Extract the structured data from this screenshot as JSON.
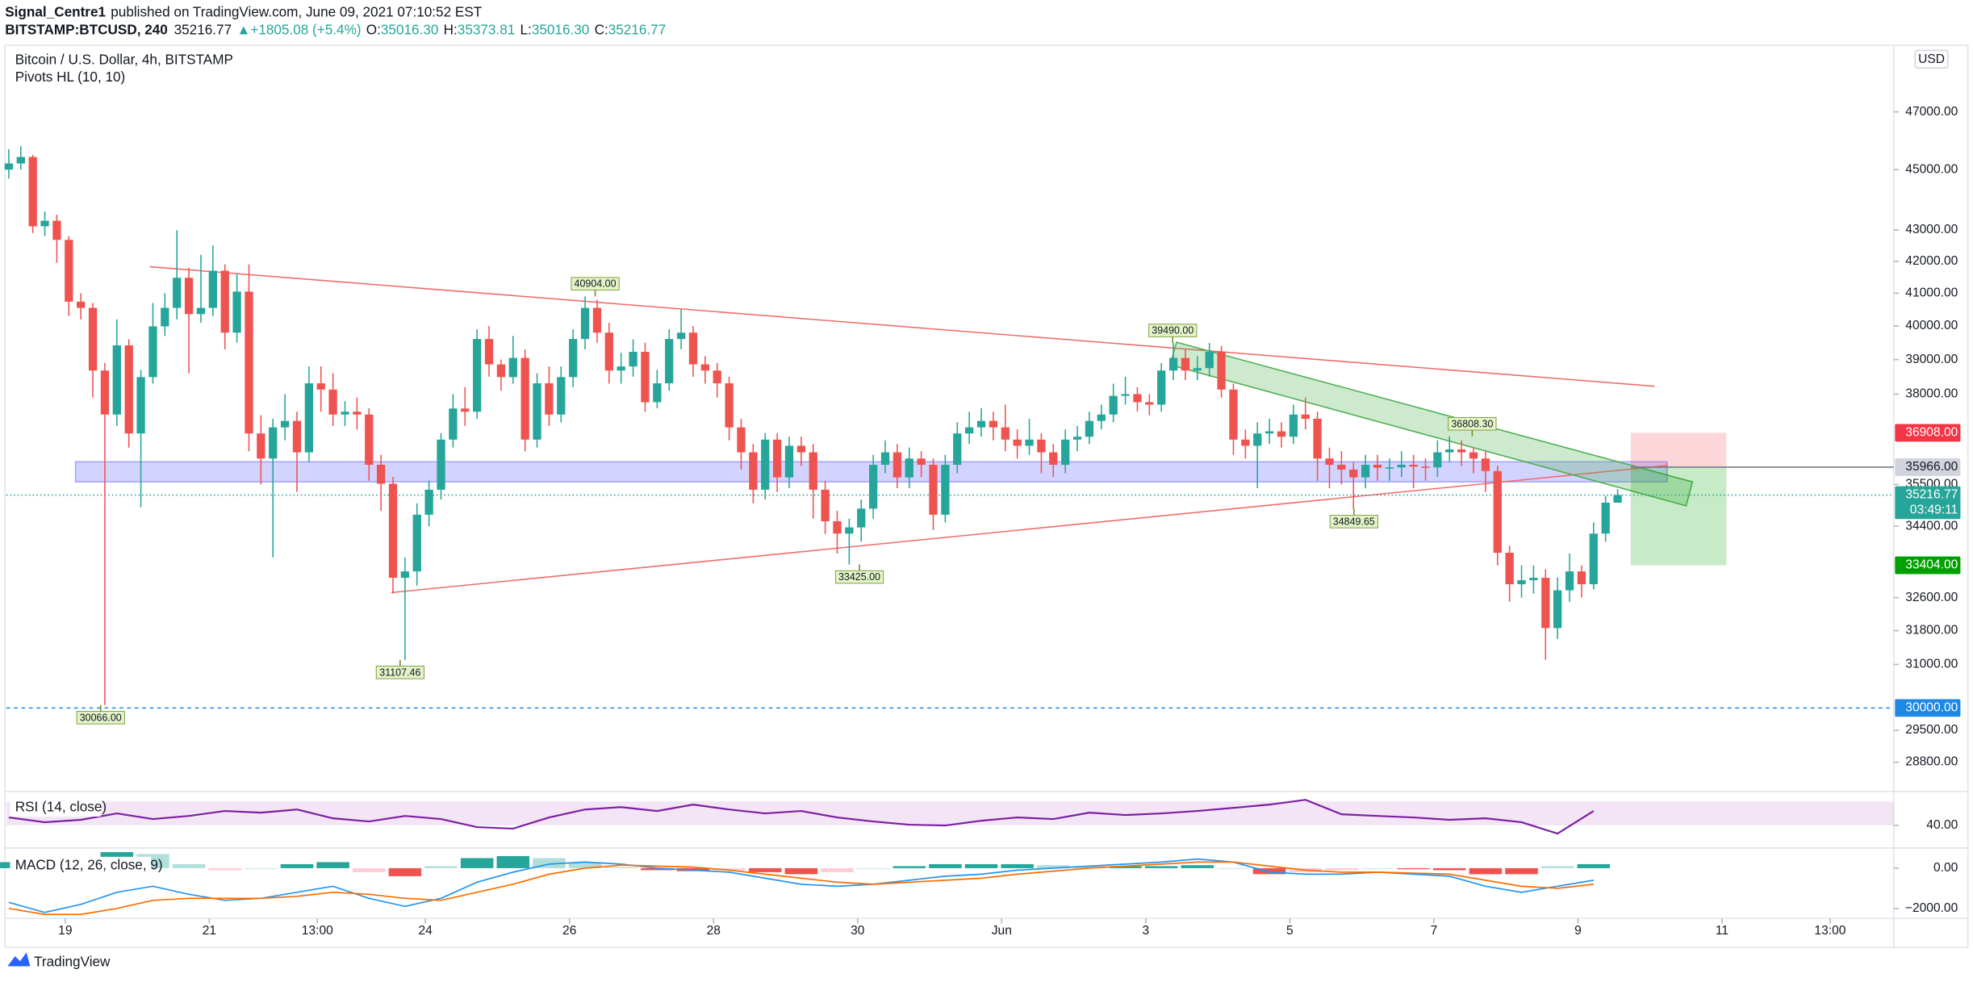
{
  "header": {
    "author": "Signal_Centre1",
    "published": "published on TradingView.com, June 09, 2021 07:10:52 EST",
    "symbol": "BITSTAMP:BTCUSD, 240",
    "last": "35216.77",
    "change": "▲+1805.08 (+5.4%)",
    "ohlc": [
      {
        "key": "O:",
        "value": "35016.30"
      },
      {
        "key": "H:",
        "value": "35373.81"
      },
      {
        "key": "L:",
        "value": "35016.30"
      },
      {
        "key": "C:",
        "value": "35216.77"
      }
    ]
  },
  "footer": {
    "brand": "TradingView"
  },
  "chart_data": [
    {
      "type": "candlestick",
      "title": "Bitcoin / U.S. Dollar, 4h, BITSTAMP",
      "indicator": "Pivots HL (10, 10)",
      "currency": "USD",
      "up_color": "#26a69a",
      "down_color": "#ef5350",
      "countdown": "03:49:11",
      "open": [
        45000,
        45210,
        45430,
        43120,
        43300,
        42680,
        40740,
        40550,
        38680,
        37420,
        39420,
        36890,
        38490,
        39990,
        40550,
        41480,
        40360,
        40550,
        41700,
        39800,
        41050,
        36890,
        36200,
        37060,
        37240,
        36370,
        38310,
        38130,
        37420,
        37500,
        37420,
        36030,
        35520,
        33090,
        33250,
        34700,
        35360,
        36720,
        37590,
        37500,
        39610,
        38860,
        38490,
        39050,
        36720,
        38310,
        37420,
        38490,
        39610,
        40550,
        39800,
        38680,
        38800,
        39230,
        37770,
        38310,
        39610,
        39800,
        38860,
        38680,
        38310,
        37060,
        36370,
        35360,
        36720,
        35690,
        36550,
        36370,
        35360,
        34530,
        34210,
        34370,
        34860,
        36030,
        36370,
        35690,
        36200,
        36030,
        34700,
        36030,
        36890,
        37060,
        37240,
        37060,
        36720,
        36550,
        36720,
        36370,
        36030,
        36720,
        36800,
        37240,
        37420,
        37950,
        38000,
        37770,
        37700,
        38680,
        39050,
        38680,
        38750,
        39230,
        38130,
        36720,
        36550,
        36890,
        36950,
        36800,
        37420,
        37300,
        36200,
        36030,
        35900,
        35690,
        36030,
        35950,
        35960,
        36030,
        35980,
        35960,
        36370,
        36450,
        36370,
        36200,
        35860,
        33720,
        32930,
        33030,
        33090,
        31860,
        32780,
        33250,
        32930,
        34210,
        35016.3
      ],
      "high": [
        45700,
        45800,
        45500,
        43600,
        43500,
        42800,
        41000,
        40700,
        38900,
        40200,
        39600,
        38700,
        40700,
        41000,
        42990,
        41800,
        42200,
        42500,
        41900,
        41600,
        41900,
        37400,
        37300,
        38000,
        37500,
        38800,
        38800,
        38600,
        37800,
        37900,
        37600,
        36300,
        35700,
        33600,
        35000,
        35600,
        36900,
        38000,
        38200,
        39900,
        40000,
        39000,
        39700,
        39300,
        38600,
        38800,
        38800,
        39900,
        40904,
        40800,
        40100,
        39200,
        39600,
        39500,
        38700,
        39900,
        40500,
        40000,
        39100,
        38900,
        38500,
        37300,
        36600,
        36900,
        36900,
        36800,
        36800,
        36600,
        35600,
        34800,
        34600,
        35100,
        36300,
        36700,
        36600,
        36500,
        36400,
        36200,
        36300,
        37200,
        37500,
        37600,
        37500,
        37700,
        37000,
        37300,
        36900,
        36600,
        37000,
        37100,
        37500,
        37700,
        38300,
        38500,
        38200,
        38000,
        38900,
        39490,
        39300,
        39100,
        39490,
        39400,
        38300,
        37000,
        37200,
        37300,
        37200,
        37700,
        37900,
        37500,
        36500,
        36400,
        36100,
        36300,
        36300,
        36200,
        36400,
        36300,
        36200,
        36700,
        36808,
        36700,
        36500,
        36400,
        36000,
        33900,
        33400,
        33400,
        33300,
        33100,
        33700,
        33400,
        34500,
        35200,
        35373.81
      ],
      "low": [
        44700,
        45000,
        42900,
        42800,
        41950,
        40300,
        40200,
        37900,
        30066,
        37100,
        36500,
        34900,
        38300,
        39700,
        40200,
        38600,
        40100,
        40300,
        39300,
        39500,
        36400,
        35500,
        33600,
        36700,
        35300,
        36100,
        37500,
        37100,
        37100,
        37000,
        35600,
        34800,
        32700,
        31107,
        32900,
        34400,
        35100,
        36500,
        37100,
        37300,
        38500,
        38100,
        38300,
        36400,
        36500,
        37100,
        37200,
        38200,
        39300,
        39500,
        38300,
        38300,
        38500,
        37500,
        37600,
        38100,
        39300,
        38500,
        38300,
        37900,
        36700,
        35900,
        35000,
        35100,
        35300,
        35400,
        36000,
        34600,
        34200,
        33700,
        33425,
        34000,
        34600,
        35800,
        35400,
        35400,
        35700,
        34300,
        34500,
        35800,
        36600,
        36800,
        36700,
        36400,
        36200,
        36300,
        35800,
        35700,
        35800,
        36400,
        36600,
        37000,
        37200,
        37700,
        37500,
        37400,
        37500,
        38400,
        38400,
        38400,
        38500,
        37900,
        36300,
        36200,
        35400,
        36600,
        36500,
        36600,
        37000,
        35600,
        35400,
        35500,
        34849,
        35400,
        35600,
        35600,
        35700,
        35400,
        35600,
        35700,
        36100,
        36000,
        35800,
        35300,
        33400,
        32500,
        32600,
        32700,
        31110,
        31600,
        32500,
        32600,
        32800,
        34000,
        35016.3
      ],
      "close": [
        45210,
        45430,
        43120,
        43300,
        42680,
        40740,
        40550,
        38680,
        37420,
        39420,
        36890,
        38490,
        39990,
        40550,
        41480,
        40360,
        40550,
        41700,
        39800,
        41050,
        36890,
        36200,
        37060,
        37240,
        36370,
        38310,
        38130,
        37420,
        37500,
        37420,
        36030,
        35520,
        33090,
        33250,
        34700,
        35360,
        36720,
        37590,
        37500,
        39610,
        38860,
        38490,
        39050,
        36720,
        38310,
        37420,
        38490,
        39610,
        40550,
        39800,
        38680,
        38800,
        39230,
        37770,
        38310,
        39610,
        39800,
        38860,
        38680,
        38310,
        37060,
        36370,
        35360,
        36720,
        35690,
        36550,
        36370,
        35360,
        34530,
        34210,
        34370,
        34860,
        36030,
        36370,
        35690,
        36200,
        36030,
        34700,
        36030,
        36890,
        37060,
        37240,
        37060,
        36720,
        36550,
        36720,
        36370,
        36030,
        36720,
        36800,
        37240,
        37420,
        37950,
        38000,
        37770,
        37700,
        38680,
        39050,
        38680,
        38750,
        39230,
        38130,
        36720,
        36550,
        36890,
        36950,
        36800,
        37420,
        37300,
        36200,
        36030,
        35900,
        35690,
        36030,
        35950,
        35960,
        36030,
        35980,
        35960,
        36370,
        36450,
        36370,
        36200,
        35860,
        33720,
        32930,
        33030,
        33090,
        31860,
        32780,
        33250,
        32930,
        34210,
        35016.3,
        35216.77
      ],
      "xlim": [
        -0.21,
        157
      ],
      "xticks": [
        {
          "value": 4.7,
          "label": "19"
        },
        {
          "value": 16.7,
          "label": "21"
        },
        {
          "value": 25.7,
          "label": "13:00"
        },
        {
          "value": 34.7,
          "label": "24"
        },
        {
          "value": 46.7,
          "label": "26"
        },
        {
          "value": 58.7,
          "label": "28"
        },
        {
          "value": 70.7,
          "label": "30"
        },
        {
          "value": 82.7,
          "label": "Jun"
        },
        {
          "value": 94.7,
          "label": "3"
        },
        {
          "value": 106.7,
          "label": "5"
        },
        {
          "value": 118.7,
          "label": "7"
        },
        {
          "value": 130.7,
          "label": "9"
        },
        {
          "value": 142.7,
          "label": "11"
        },
        {
          "value": 151.7,
          "label": "13:00"
        }
      ],
      "ylim": [
        28200,
        49230
      ],
      "log": true,
      "yticks": [
        {
          "value": 47000,
          "label": "47000.00"
        },
        {
          "value": 45000,
          "label": "45000.00"
        },
        {
          "value": 43000,
          "label": "43000.00"
        },
        {
          "value": 42000,
          "label": "42000.00"
        },
        {
          "value": 41000,
          "label": "41000.00"
        },
        {
          "value": 40000,
          "label": "40000.00"
        },
        {
          "value": 39000,
          "label": "39000.00"
        },
        {
          "value": 38000,
          "label": "38000.00"
        },
        {
          "value": 35500,
          "label": "35500.00"
        },
        {
          "value": 34400,
          "label": "34400.00"
        },
        {
          "value": 32600,
          "label": "32600.00"
        },
        {
          "value": 31800,
          "label": "31800.00"
        },
        {
          "value": 31000,
          "label": "31000.00"
        },
        {
          "value": 29500,
          "label": "29500.00"
        },
        {
          "value": 28800,
          "label": "28800.00"
        }
      ],
      "pivots": [
        {
          "value": 30066,
          "label": "30066.00"
        },
        {
          "value": 31107.46,
          "label": "31107.46"
        },
        {
          "value": 40904,
          "label": "40904.00"
        },
        {
          "value": 33425,
          "label": "33425.00"
        },
        {
          "value": 39490,
          "label": "39490.00"
        },
        {
          "value": 34849.65,
          "label": "34849.65"
        },
        {
          "value": 36808.3,
          "label": "36808.30"
        }
      ],
      "price_labels": [
        {
          "value": 36908,
          "label": "36908.00",
          "color": "#f23645",
          "text_color": "#ffffff"
        },
        {
          "value": 35966,
          "label": "35966.00",
          "color": "#d1d4dc",
          "text_color": "#131722"
        },
        {
          "value": 33404,
          "label": "33404.00",
          "color": "#00a000",
          "text_color": "#ffffff"
        },
        {
          "value": 30000,
          "label": "30000.00",
          "color": "#1e88e5",
          "text_color": "#ffffff"
        }
      ]
    },
    {
      "type": "line",
      "title": "RSI (14, close)",
      "color": "#7b1fa2",
      "xlim": [
        -0.21,
        157
      ],
      "ylim": [
        15,
        81
      ],
      "yticks": [
        {
          "value": 40,
          "label": "40.00"
        }
      ],
      "x": [
        0,
        3,
        6,
        9,
        12,
        15,
        18,
        21,
        24,
        27,
        30,
        33,
        36,
        39,
        42,
        45,
        48,
        51,
        54,
        57,
        60,
        63,
        66,
        69,
        72,
        75,
        78,
        81,
        84,
        87,
        90,
        93,
        96,
        99,
        102,
        105,
        108,
        111,
        114,
        117,
        120,
        123,
        126,
        129,
        132
      ],
      "values": [
        50,
        44,
        47,
        55,
        48,
        52,
        58,
        56,
        60,
        49,
        45,
        52,
        48,
        38,
        36,
        50,
        60,
        63,
        58,
        66,
        60,
        55,
        58,
        50,
        45,
        41,
        40,
        46,
        50,
        48,
        56,
        53,
        55,
        58,
        62,
        66,
        72,
        54,
        52,
        50,
        47,
        49,
        44,
        30,
        58
      ]
    },
    {
      "type": "macd",
      "title": "MACD (12, 26, close, 9)",
      "xlim": [
        -0.21,
        157
      ],
      "ylim": [
        -2375,
        940
      ],
      "yticks": [
        {
          "value": 0,
          "label": "0.00"
        },
        {
          "value": -2000,
          "label": "−2000.00"
        }
      ],
      "x": [
        0,
        3,
        6,
        9,
        12,
        15,
        18,
        21,
        24,
        27,
        30,
        33,
        36,
        39,
        42,
        45,
        48,
        51,
        54,
        57,
        60,
        63,
        66,
        69,
        72,
        75,
        78,
        81,
        84,
        87,
        90,
        93,
        96,
        99,
        102,
        105,
        108,
        111,
        114,
        117,
        120,
        123,
        126,
        129,
        132
      ],
      "values": [
        300,
        100,
        500,
        800,
        700,
        200,
        -100,
        0,
        200,
        300,
        -200,
        -400,
        100,
        500,
        600,
        500,
        300,
        50,
        -100,
        -150,
        -100,
        -200,
        -300,
        -200,
        0,
        100,
        200,
        200,
        200,
        150,
        100,
        100,
        100,
        150,
        0,
        -300,
        -200,
        -100,
        0,
        -50,
        -100,
        -300,
        -300,
        100,
        200
      ],
      "lines": [
        {
          "color": "#2196f3",
          "values": [
            -1700,
            -2200,
            -1800,
            -1200,
            -900,
            -1300,
            -1600,
            -1500,
            -1200,
            -900,
            -1500,
            -1900,
            -1500,
            -700,
            -200,
            200,
            300,
            200,
            0,
            -100,
            -200,
            -500,
            -800,
            -900,
            -800,
            -600,
            -400,
            -300,
            -100,
            0,
            100,
            200,
            300,
            450,
            300,
            -200,
            -300,
            -300,
            -200,
            -300,
            -400,
            -900,
            -1200,
            -900,
            -600
          ]
        },
        {
          "color": "#ff6d00",
          "values": [
            -2000,
            -2300,
            -2300,
            -2000,
            -1600,
            -1500,
            -1500,
            -1500,
            -1400,
            -1200,
            -1300,
            -1500,
            -1600,
            -1200,
            -800,
            -300,
            0,
            150,
            100,
            50,
            -100,
            -300,
            -500,
            -700,
            -800,
            -700,
            -600,
            -500,
            -300,
            -150,
            0,
            100,
            200,
            300,
            300,
            100,
            -100,
            -200,
            -200,
            -250,
            -300,
            -600,
            -900,
            -1000,
            -800
          ]
        }
      ]
    }
  ]
}
